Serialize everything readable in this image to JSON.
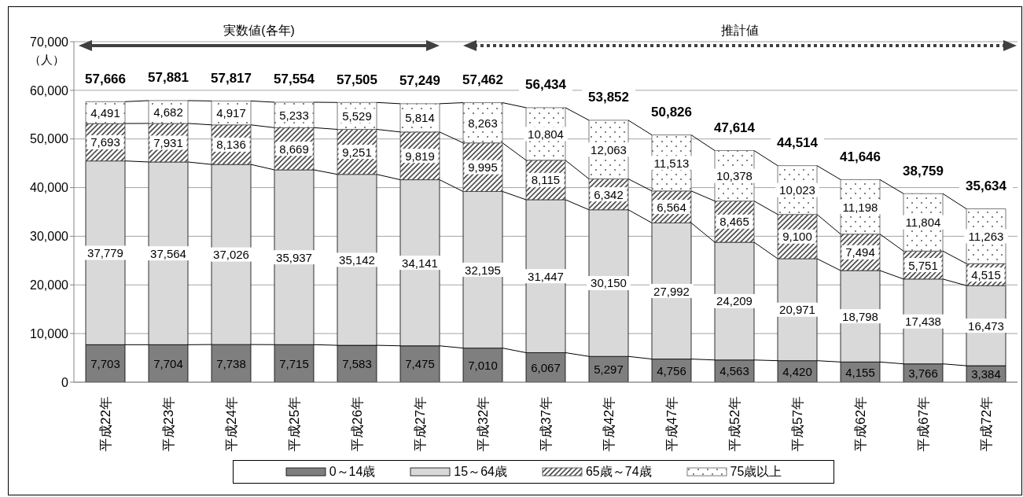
{
  "chart_data": {
    "type": "bar",
    "stacked": true,
    "ylabel": "（人）",
    "categories": [
      "平成22年",
      "平成23年",
      "平成24年",
      "平成25年",
      "平成26年",
      "平成27年",
      "平成32年",
      "平成37年",
      "平成42年",
      "平成47年",
      "平成52年",
      "平成57年",
      "平成62年",
      "平成67年",
      "平成72年"
    ],
    "series": [
      {
        "name": "0～14歳",
        "color": "#7f7f7f",
        "values": [
          7703,
          7704,
          7738,
          7715,
          7583,
          7475,
          7010,
          6067,
          5297,
          4756,
          4563,
          4420,
          4155,
          3766,
          3384
        ],
        "value_labels": [
          "7,703",
          "7,704",
          "7,738",
          "7,715",
          "7,583",
          "7,475",
          "7,010",
          "6,067",
          "5,297",
          "4,756",
          "4,563",
          "4,420",
          "4,155",
          "3,766",
          "3,384"
        ]
      },
      {
        "name": "15～64歳",
        "color": "#d9d9d9",
        "values": [
          37779,
          37564,
          37026,
          35937,
          35142,
          34141,
          32195,
          31447,
          30150,
          27992,
          24209,
          20971,
          18798,
          17438,
          16473
        ],
        "value_labels": [
          "37,779",
          "37,564",
          "37,026",
          "35,937",
          "35,142",
          "34,141",
          "32,195",
          "31,447",
          "30,150",
          "27,992",
          "24,209",
          "20,971",
          "18,798",
          "17,438",
          "16,473"
        ]
      },
      {
        "name": "65歳～74歳",
        "color": "#404040",
        "values": [
          7693,
          7931,
          8136,
          8669,
          9251,
          9819,
          9995,
          8115,
          6342,
          6564,
          8465,
          9100,
          7494,
          5751,
          4515
        ],
        "value_labels": [
          "7,693",
          "7,931",
          "8,136",
          "8,669",
          "9,251",
          "9,819",
          "9,995",
          "8,115",
          "6,342",
          "6,564",
          "8,465",
          "9,100",
          "7,494",
          "5,751",
          "4,515"
        ]
      },
      {
        "name": "75歳以上",
        "color": "#595959",
        "values": [
          4491,
          4682,
          4917,
          5233,
          5529,
          5814,
          8263,
          10804,
          12063,
          11513,
          10378,
          10023,
          11198,
          11804,
          11263
        ],
        "value_labels": [
          "4,491",
          "4,682",
          "4,917",
          "5,233",
          "5,529",
          "5,814",
          "8,263",
          "10,804",
          "12,063",
          "11,513",
          "10,378",
          "10,023",
          "11,198",
          "11,804",
          "11,263"
        ]
      }
    ],
    "ylim": [
      0,
      70000
    ],
    "yticks": [
      {
        "value": 0,
        "label": "0"
      },
      {
        "value": 10000,
        "label": "10,000"
      },
      {
        "value": 20000,
        "label": "20,000"
      },
      {
        "value": 30000,
        "label": "30,000"
      },
      {
        "value": 40000,
        "label": "40,000"
      },
      {
        "value": 50000,
        "label": "50,000"
      },
      {
        "value": 60000,
        "label": "60,000"
      },
      {
        "value": 70000,
        "label": "70,000"
      }
    ],
    "grid": "y",
    "legend": "bottom",
    "totals": [
      "57,666",
      "57,881",
      "57,817",
      "57,554",
      "57,505",
      "57,249",
      "57,462",
      "56,434",
      "53,852",
      "50,826",
      "47,614",
      "44,514",
      "41,646",
      "38,759",
      "35,634"
    ],
    "annotations": [
      "実数値(各年)",
      "推計値"
    ]
  }
}
